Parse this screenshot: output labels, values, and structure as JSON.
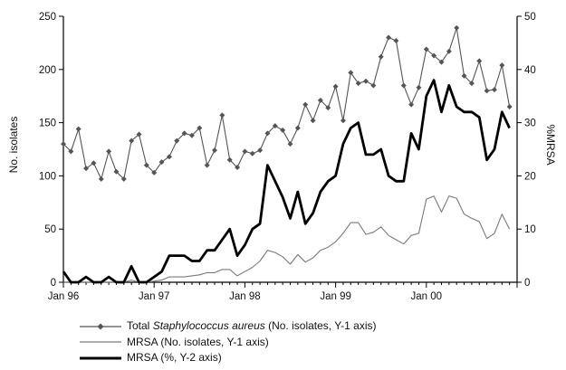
{
  "chart_data": {
    "type": "line",
    "x_labels": [
      "Jan 96",
      "Jan 97",
      "Jan 98",
      "Jan 99",
      "Jan 00"
    ],
    "y1": {
      "label": "No. isolates",
      "lim": [
        0,
        250
      ],
      "ticks": [
        "0",
        "50",
        "100",
        "150",
        "200",
        "250"
      ]
    },
    "y2": {
      "label": "%MRSA",
      "lim": [
        0,
        50
      ],
      "ticks": [
        "0",
        "10",
        "20",
        "30",
        "40",
        "50"
      ]
    },
    "series": [
      {
        "name_prefix": "Total ",
        "name_italic": "Staphylococcus aureus",
        "name_suffix": " (No. isolates, Y-1 axis)",
        "axis": "y1",
        "color": "#555555",
        "marker": "diamond",
        "values": [
          130,
          123,
          144,
          107,
          112,
          97,
          123,
          104,
          97,
          133,
          139,
          110,
          103,
          113,
          118,
          133,
          140,
          138,
          145,
          110,
          124,
          157,
          115,
          108,
          123,
          121,
          124,
          140,
          147,
          143,
          130,
          145,
          167,
          152,
          171,
          164,
          184,
          152,
          197,
          187,
          189,
          185,
          212,
          230,
          227,
          185,
          167,
          183,
          219,
          213,
          207,
          217,
          239,
          194,
          187,
          208,
          180,
          181,
          204,
          165
        ]
      },
      {
        "name": "MRSA (No. isolates, Y-1 axis)",
        "axis": "y1",
        "color": "#7a7a7a",
        "values": [
          0,
          0,
          0,
          0,
          0,
          0,
          0,
          0,
          0,
          2,
          0,
          0,
          1,
          2,
          5,
          5,
          5,
          6,
          7,
          9,
          9,
          12,
          12,
          6,
          10,
          14,
          20,
          30,
          28,
          24,
          17,
          26,
          19,
          23,
          30,
          33,
          38,
          46,
          56,
          56,
          45,
          47,
          52,
          44,
          40,
          36,
          44,
          46,
          78,
          81,
          66,
          81,
          79,
          64,
          60,
          57,
          41,
          46,
          64,
          50
        ]
      },
      {
        "name": "MRSA (%, Y-2 axis)",
        "axis": "y2",
        "color": "#000000",
        "values": [
          2,
          0,
          0,
          1,
          0,
          0,
          1,
          0,
          0,
          3,
          0,
          0,
          1,
          2,
          5,
          5,
          5,
          4,
          4,
          6,
          6,
          8,
          10,
          5,
          7,
          10,
          11,
          22,
          19,
          16,
          12,
          17,
          11,
          13,
          17,
          19,
          20,
          26,
          29,
          30,
          24,
          24,
          25,
          20,
          19,
          19,
          28,
          25,
          35,
          38,
          32,
          37,
          33,
          32,
          32,
          31,
          23,
          25,
          32,
          29
        ]
      }
    ]
  }
}
